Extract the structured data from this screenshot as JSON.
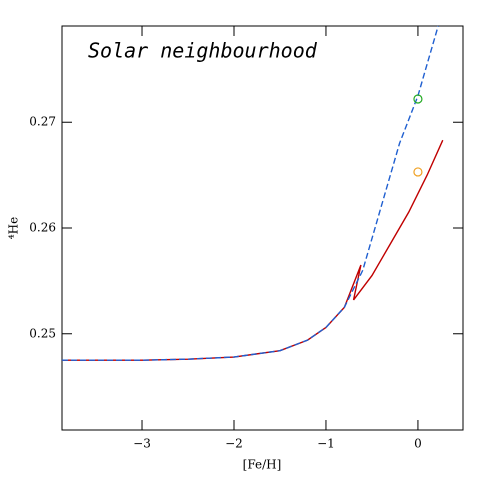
{
  "chart_data": {
    "type": "line",
    "annotation": "Solar neighbourhood",
    "xlabel": "[Fe/H]",
    "ylabel": "⁴He",
    "xlim": [
      -3.87,
      0.49
    ],
    "ylim": [
      0.2409,
      0.2791
    ],
    "xticks": [
      {
        "value": -3,
        "label": "−3"
      },
      {
        "value": -2,
        "label": "−2"
      },
      {
        "value": -1,
        "label": "−1"
      },
      {
        "value": 0,
        "label": "0"
      }
    ],
    "yticks": [
      0.25,
      0.26,
      0.27
    ],
    "series": [
      {
        "color": "#c00000",
        "dash": "solid",
        "x": [
          -3.87,
          -3,
          -2.5,
          -2,
          -1.5,
          -1.2,
          -1,
          -0.8,
          -0.62,
          -0.7,
          -0.5,
          -0.3,
          -0.1,
          0.1,
          0.27
        ],
        "values": [
          0.2475,
          0.2475,
          0.2476,
          0.2478,
          0.2484,
          0.2494,
          0.2506,
          0.2525,
          0.2565,
          0.2532,
          0.2555,
          0.2585,
          0.2615,
          0.265,
          0.2683
        ]
      },
      {
        "color": "#1f5fd0",
        "dash": "dashed",
        "x": [
          -3.87,
          -3,
          -2.5,
          -2,
          -1.5,
          -1.2,
          -1,
          -0.8,
          -0.6,
          -0.4,
          -0.2,
          0,
          0.22
        ],
        "values": [
          0.2475,
          0.2475,
          0.2476,
          0.2478,
          0.2484,
          0.2494,
          0.2506,
          0.2525,
          0.256,
          0.262,
          0.268,
          0.2725,
          0.2791
        ]
      }
    ],
    "points": [
      {
        "x": 0,
        "y": 0.2722,
        "color": "#22aa22"
      },
      {
        "x": 0,
        "y": 0.2653,
        "color": "#f0a020"
      }
    ]
  }
}
